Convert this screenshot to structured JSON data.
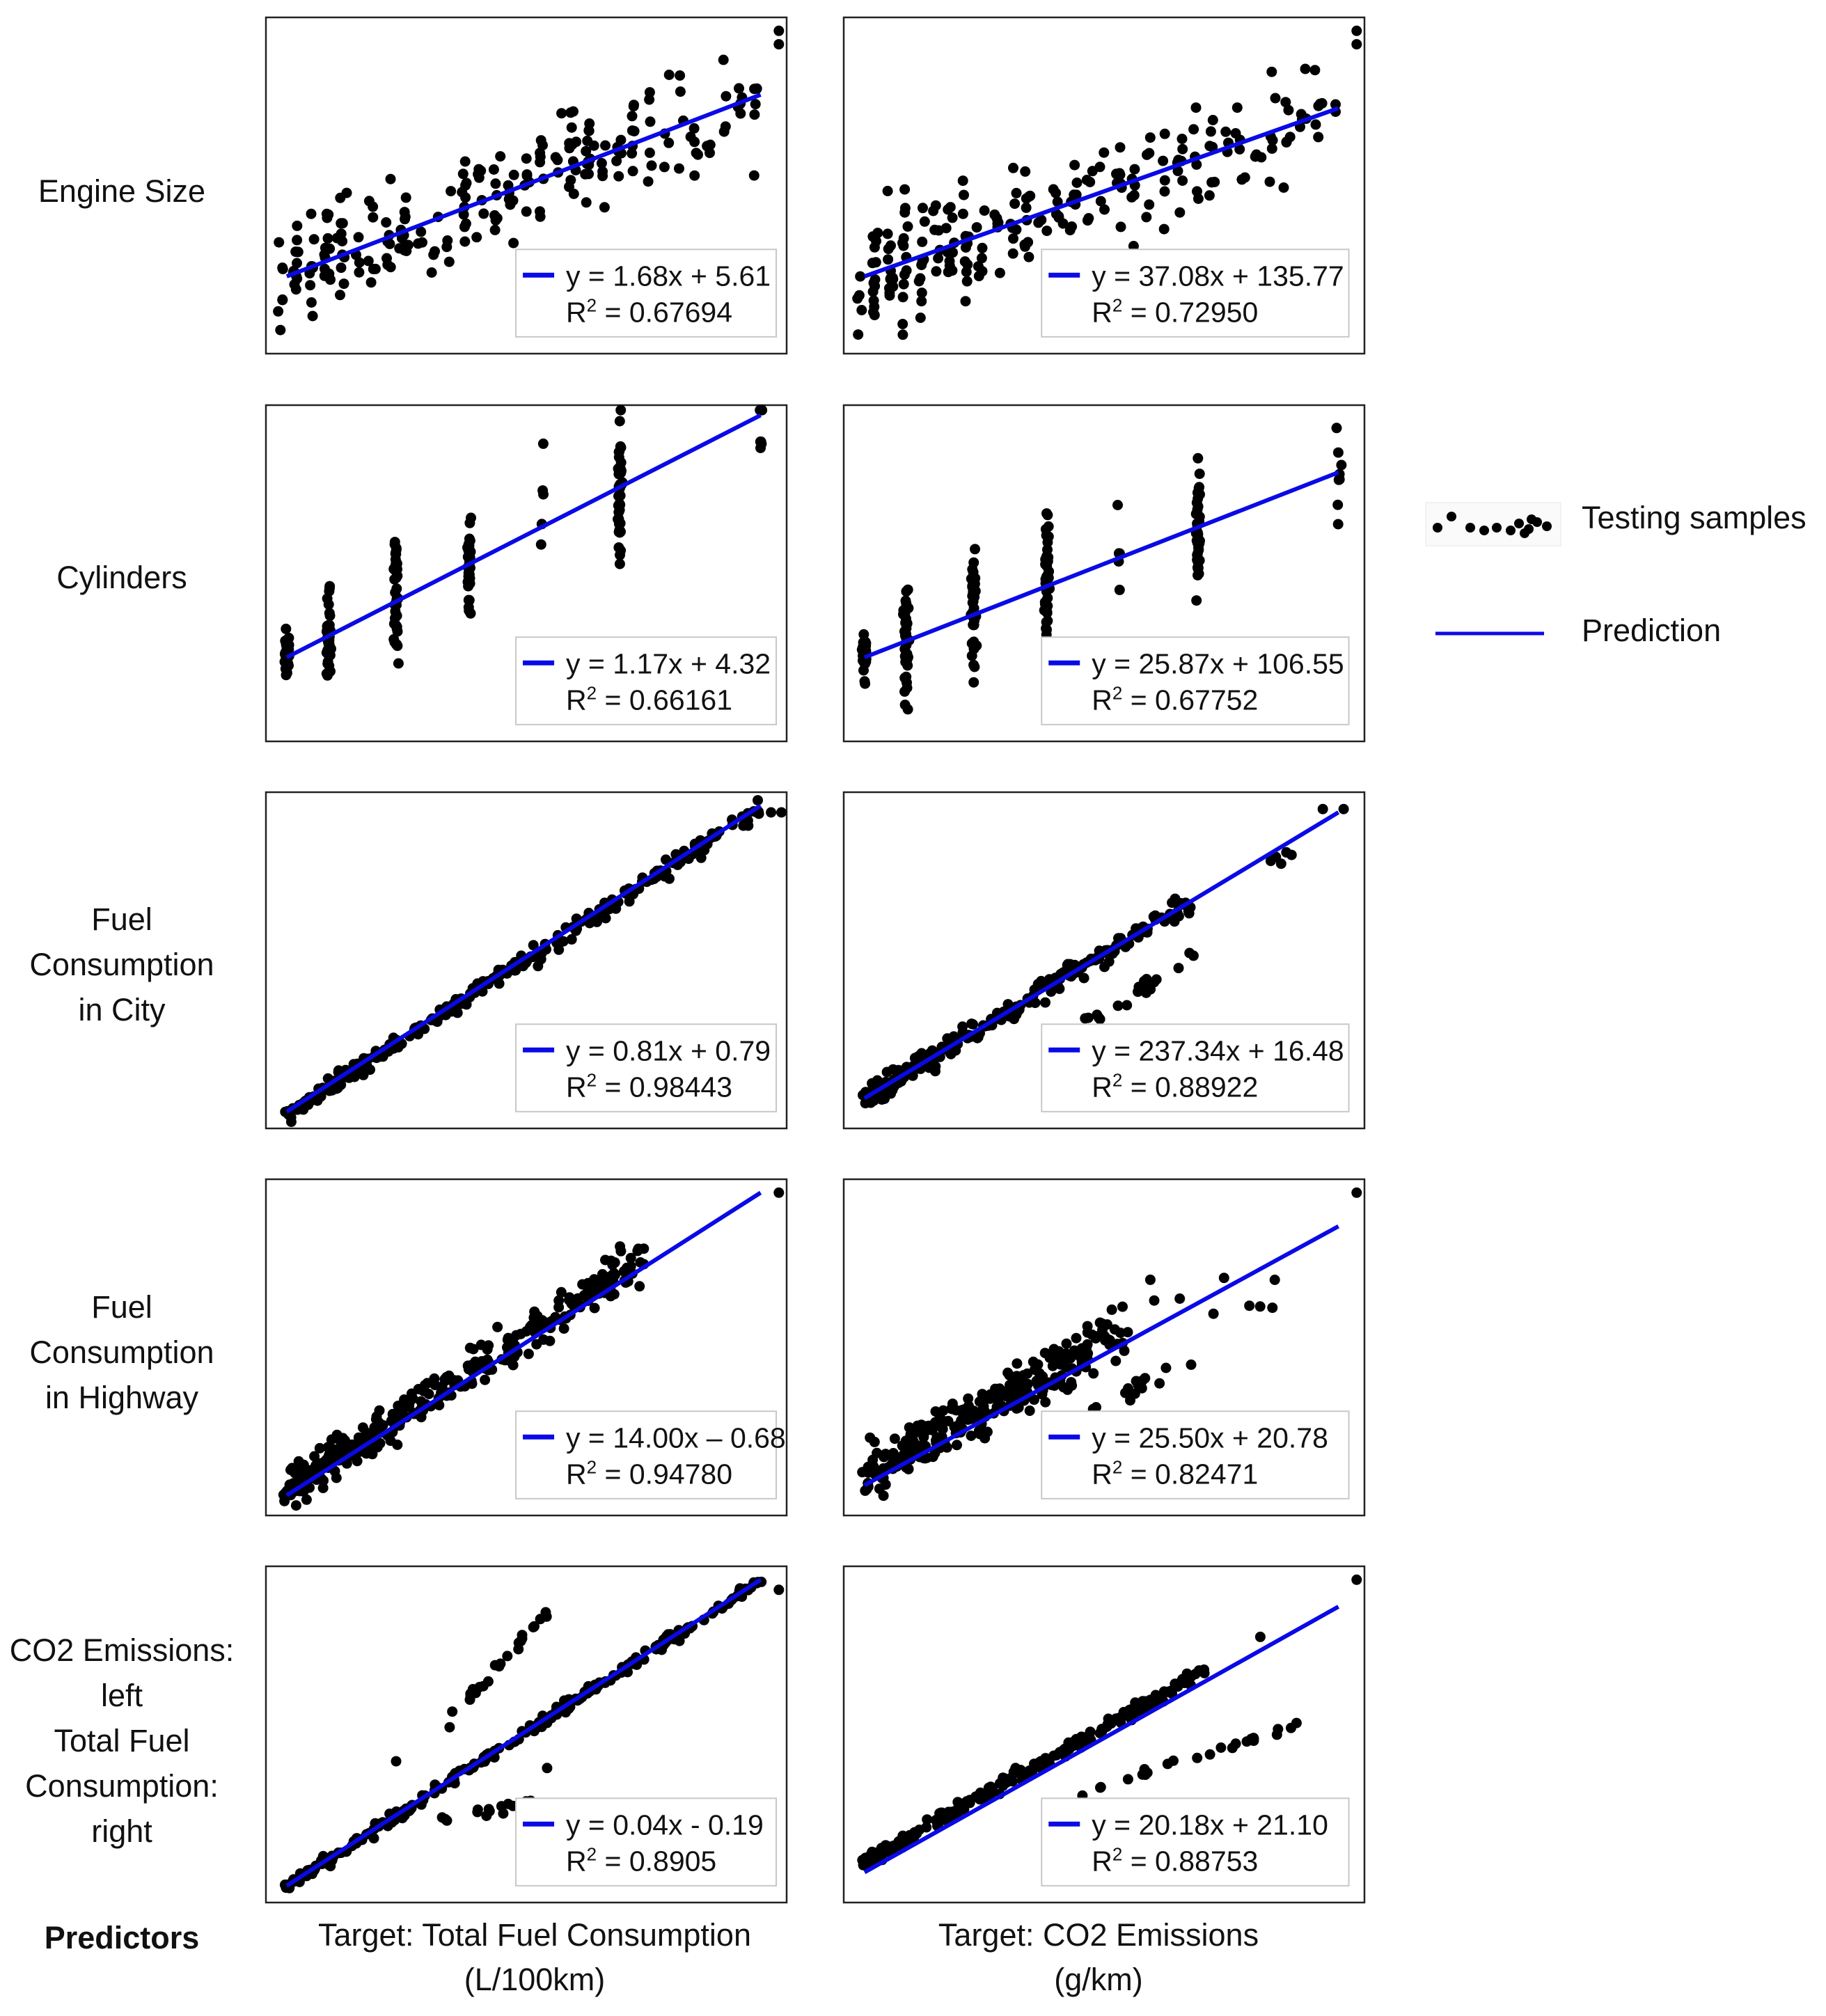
{
  "row_labels": [
    {
      "lines": [
        "Engine Size"
      ]
    },
    {
      "lines": [
        "Cylinders"
      ]
    },
    {
      "lines": [
        "Fuel",
        "Consumption",
        "in City"
      ]
    },
    {
      "lines": [
        "Fuel",
        "Consumption",
        "in Highway"
      ]
    },
    {
      "lines": [
        "CO2 Emissions:",
        "left",
        "Total Fuel",
        "Consumption:",
        "right"
      ]
    }
  ],
  "column_labels": [
    {
      "line1": "Target: Total Fuel Consumption",
      "line2": "(L/100km)"
    },
    {
      "line1": "Target: CO2 Emissions",
      "line2": "(g/km)"
    }
  ],
  "footer": {
    "predictors_label": "Predictors"
  },
  "legend": {
    "samples_label": "Testing samples",
    "prediction_label": "Prediction",
    "line_color": "#0a0ae6",
    "point_color": "#000000"
  },
  "chart_data": [
    {
      "type": "scatter",
      "row": "Engine Size",
      "target": "Total Fuel Consumption (L/100km)",
      "equation": "y = 1.68x + 5.61",
      "r2": "0.67694",
      "fit_line": {
        "slope": 1.68,
        "intercept": 5.61
      },
      "pattern": "moderate"
    },
    {
      "type": "scatter",
      "row": "Engine Size",
      "target": "CO2 Emissions (g/km)",
      "equation": "y = 37.08x + 135.77",
      "r2": "0.72950",
      "fit_line": {
        "slope": 37.08,
        "intercept": 135.77
      },
      "pattern": "moderate"
    },
    {
      "type": "scatter",
      "row": "Cylinders",
      "target": "Total Fuel Consumption (L/100km)",
      "equation": "y = 1.17x + 4.32",
      "r2": "0.66161",
      "fit_line": {
        "slope": 1.17,
        "intercept": 4.32
      },
      "pattern": "discrete"
    },
    {
      "type": "scatter",
      "row": "Cylinders",
      "target": "CO2 Emissions (g/km)",
      "equation": "y = 25.87x + 106.55",
      "r2": "0.67752",
      "fit_line": {
        "slope": 25.87,
        "intercept": 106.55
      },
      "pattern": "discrete"
    },
    {
      "type": "scatter",
      "row": "Fuel Consumption in City",
      "target": "Total Fuel Consumption (L/100km)",
      "equation": "y = 0.81x + 0.79",
      "r2": "0.98443",
      "fit_line": {
        "slope": 0.81,
        "intercept": 0.79
      },
      "pattern": "tight"
    },
    {
      "type": "scatter",
      "row": "Fuel Consumption in City",
      "target": "CO2 Emissions (g/km)",
      "equation": "y = 237.34x + 16.48",
      "r2": "0.88922",
      "fit_line": {
        "slope": 237.34,
        "intercept": 16.48
      },
      "pattern": "branch_below"
    },
    {
      "type": "scatter",
      "row": "Fuel Consumption in Highway",
      "target": "Total Fuel Consumption (L/100km)",
      "equation": "y = 14.00x – 0.68",
      "r2": "0.94780",
      "fit_line": {
        "slope": 14.0,
        "intercept": -0.68
      },
      "pattern": "spread"
    },
    {
      "type": "scatter",
      "row": "Fuel Consumption in Highway",
      "target": "CO2 Emissions (g/km)",
      "equation": "y = 25.50x + 20.78",
      "r2": "0.82471",
      "fit_line": {
        "slope": 25.5,
        "intercept": 20.78
      },
      "pattern": "spread_branch"
    },
    {
      "type": "scatter",
      "row": "CO2 Emissions",
      "target": "Total Fuel Consumption (L/100km)",
      "equation": "y = 0.04x - 0.19",
      "r2": "0.8905",
      "fit_line": {
        "slope": 0.04,
        "intercept": -0.19
      },
      "pattern": "branch_above"
    },
    {
      "type": "scatter",
      "row": "Total Fuel Consumption",
      "target": "CO2 Emissions (g/km)",
      "equation": "y = 20.18x + 21.10",
      "r2": "0.88753",
      "fit_line": {
        "slope": 20.18,
        "intercept": 21.1
      },
      "pattern": "branch_below2"
    }
  ]
}
